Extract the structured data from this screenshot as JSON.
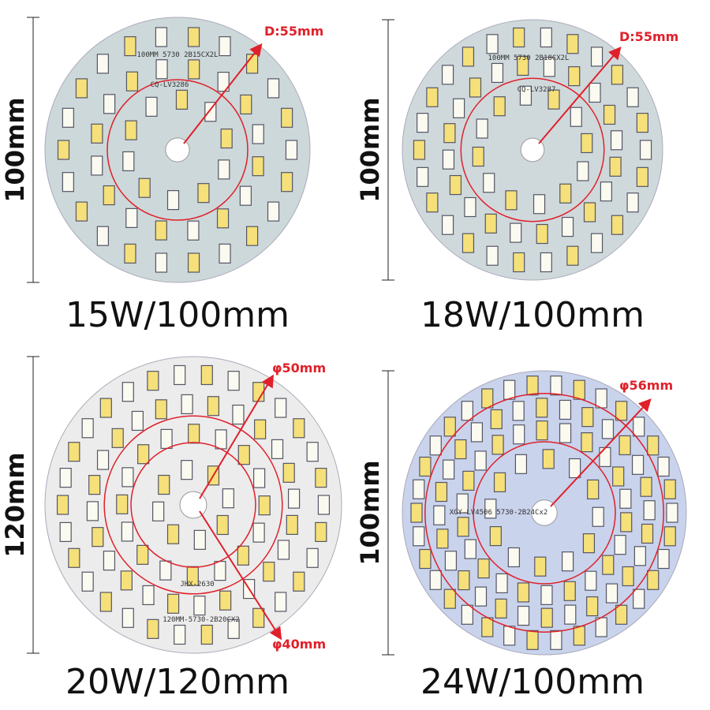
{
  "panels": [
    {
      "caption": "15W/100mm",
      "dimension": "100mm",
      "annotations": [
        "D:55mm"
      ],
      "board_text": [
        "100MM 5730 2B15CX2L",
        "CQ-LV3286"
      ]
    },
    {
      "caption": "18W/100mm",
      "dimension": "100mm",
      "annotations": [
        "D:55mm"
      ],
      "board_text": [
        "100MM 5730 2B18CX2L",
        "CQ-LV3287"
      ]
    },
    {
      "caption": "20W/120mm",
      "dimension": "120mm",
      "annotations": [
        "φ50mm",
        "φ40mm"
      ],
      "board_text": [
        "JHX-2630",
        "120MM-5730-2B20CX2"
      ]
    },
    {
      "caption": "24W/100mm",
      "dimension": "100mm",
      "annotations": [
        "φ56mm"
      ],
      "board_text": [
        "XGY-LV4506 5730-2B24Cx2"
      ]
    }
  ]
}
